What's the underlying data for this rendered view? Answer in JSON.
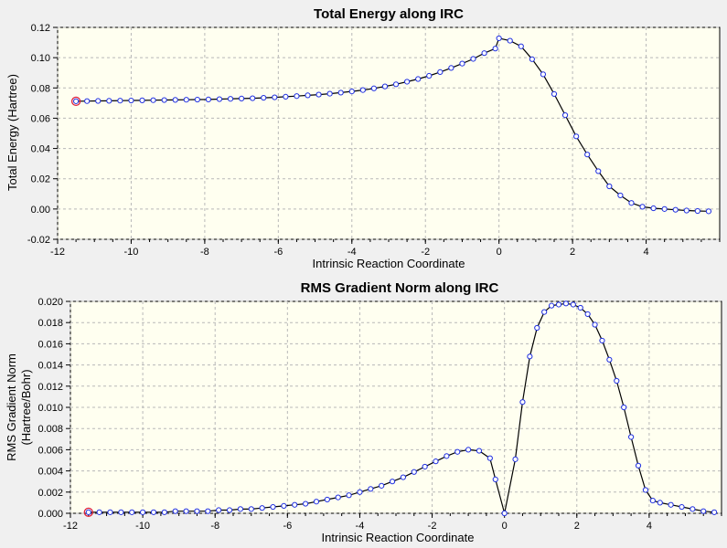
{
  "chart_data": [
    {
      "type": "line",
      "title": "Total Energy along IRC",
      "xlabel": "Intrinsic Reaction Coordinate",
      "ylabel": [
        "Total Energy (Hartree)"
      ],
      "xlim": [
        -12,
        6
      ],
      "ylim": [
        -0.02,
        0.12
      ],
      "xticks": [
        "-12",
        "-10",
        "-8",
        "-6",
        "-4",
        "-2",
        "0",
        "2",
        "4"
      ],
      "yticks": [
        "0.12",
        "0.10",
        "0.08",
        "0.06",
        "0.04",
        "0.02",
        "0.00",
        "-0.02"
      ],
      "grid": true,
      "colors": {
        "line": "#000000",
        "marker": "#1f2fe0",
        "highlight": "#e0203c",
        "plot_bg": "#fffff0"
      },
      "highlight_point": [
        -11.5,
        0.0712
      ],
      "series": [
        {
          "x": [
            -11.5,
            -11.2,
            -10.9,
            -10.6,
            -10.3,
            -10.0,
            -9.7,
            -9.4,
            -9.1,
            -8.8,
            -8.5,
            -8.2,
            -7.9,
            -7.6,
            -7.3,
            -7.0,
            -6.7,
            -6.4,
            -6.1,
            -5.8,
            -5.5,
            -5.2,
            -4.9,
            -4.6,
            -4.3,
            -4.0,
            -3.7,
            -3.4,
            -3.1,
            -2.8,
            -2.5,
            -2.2,
            -1.9,
            -1.6,
            -1.3,
            -1.0,
            -0.7,
            -0.4,
            -0.1,
            0.0,
            0.3,
            0.6,
            0.9,
            1.2,
            1.5,
            1.8,
            2.1,
            2.4,
            2.7,
            3.0,
            3.3,
            3.6,
            3.9,
            4.2,
            4.5,
            4.8,
            5.1,
            5.4,
            5.7
          ],
          "y": [
            0.0712,
            0.0713,
            0.0714,
            0.0715,
            0.0716,
            0.0717,
            0.0718,
            0.0719,
            0.072,
            0.0721,
            0.0722,
            0.0723,
            0.0724,
            0.0726,
            0.0728,
            0.073,
            0.0732,
            0.0735,
            0.0738,
            0.0742,
            0.0746,
            0.0751,
            0.0756,
            0.0762,
            0.0769,
            0.0777,
            0.0786,
            0.0797,
            0.081,
            0.0824,
            0.0841,
            0.0859,
            0.088,
            0.0905,
            0.0932,
            0.0961,
            0.0992,
            0.103,
            0.106,
            0.1128,
            0.1112,
            0.1075,
            0.099,
            0.089,
            0.076,
            0.062,
            0.048,
            0.036,
            0.025,
            0.015,
            0.009,
            0.004,
            0.0015,
            0.0005,
            0.0,
            -0.0005,
            -0.001,
            -0.0013,
            -0.0015
          ]
        }
      ]
    },
    {
      "type": "line",
      "title": "RMS Gradient Norm along IRC",
      "xlabel": "Intrinsic Reaction Coordinate",
      "ylabel": [
        "RMS Gradient Norm",
        "(Hartree/Bohr)"
      ],
      "xlim": [
        -12,
        6
      ],
      "ylim": [
        0,
        0.02
      ],
      "xticks": [
        "-12",
        "-10",
        "-8",
        "-6",
        "-4",
        "-2",
        "0",
        "2",
        "4"
      ],
      "yticks": [
        "0.020",
        "0.018",
        "0.016",
        "0.014",
        "0.012",
        "0.010",
        "0.008",
        "0.006",
        "0.004",
        "0.002",
        "0.000"
      ],
      "grid": true,
      "colors": {
        "line": "#000000",
        "marker": "#1f2fe0",
        "highlight": "#e0203c",
        "plot_bg": "#fffff0"
      },
      "highlight_point": [
        -11.5,
        0.0001
      ],
      "series": [
        {
          "x": [
            -11.5,
            -11.2,
            -10.9,
            -10.6,
            -10.3,
            -10.0,
            -9.7,
            -9.4,
            -9.1,
            -8.8,
            -8.5,
            -8.2,
            -7.9,
            -7.6,
            -7.3,
            -7.0,
            -6.7,
            -6.4,
            -6.1,
            -5.8,
            -5.5,
            -5.2,
            -4.9,
            -4.6,
            -4.3,
            -4.0,
            -3.7,
            -3.4,
            -3.1,
            -2.8,
            -2.5,
            -2.2,
            -1.9,
            -1.6,
            -1.3,
            -1.0,
            -0.7,
            -0.4,
            -0.25,
            0.0,
            0.3,
            0.5,
            0.7,
            0.9,
            1.1,
            1.3,
            1.5,
            1.7,
            1.9,
            2.1,
            2.3,
            2.5,
            2.7,
            2.9,
            3.1,
            3.3,
            3.5,
            3.7,
            3.9,
            4.1,
            4.3,
            4.6,
            4.9,
            5.2,
            5.5,
            5.8
          ],
          "y": [
            0.0001,
            0.0001,
            0.0001,
            0.0001,
            0.0001,
            0.0001,
            0.0001,
            0.0001,
            0.0002,
            0.0002,
            0.0002,
            0.0002,
            0.0003,
            0.0003,
            0.0004,
            0.0004,
            0.0005,
            0.0006,
            0.0007,
            0.0008,
            0.0009,
            0.0011,
            0.0013,
            0.0015,
            0.0017,
            0.002,
            0.0023,
            0.0026,
            0.003,
            0.0034,
            0.0039,
            0.0044,
            0.0049,
            0.0054,
            0.0058,
            0.006,
            0.0059,
            0.0052,
            0.0032,
            0.0,
            0.0051,
            0.0105,
            0.0148,
            0.0175,
            0.019,
            0.0196,
            0.0197,
            0.0198,
            0.0197,
            0.0194,
            0.0188,
            0.0178,
            0.0163,
            0.0145,
            0.0125,
            0.01,
            0.0072,
            0.0045,
            0.0022,
            0.0012,
            0.001,
            0.0008,
            0.0006,
            0.0004,
            0.0002,
            0.0001
          ]
        }
      ]
    }
  ]
}
